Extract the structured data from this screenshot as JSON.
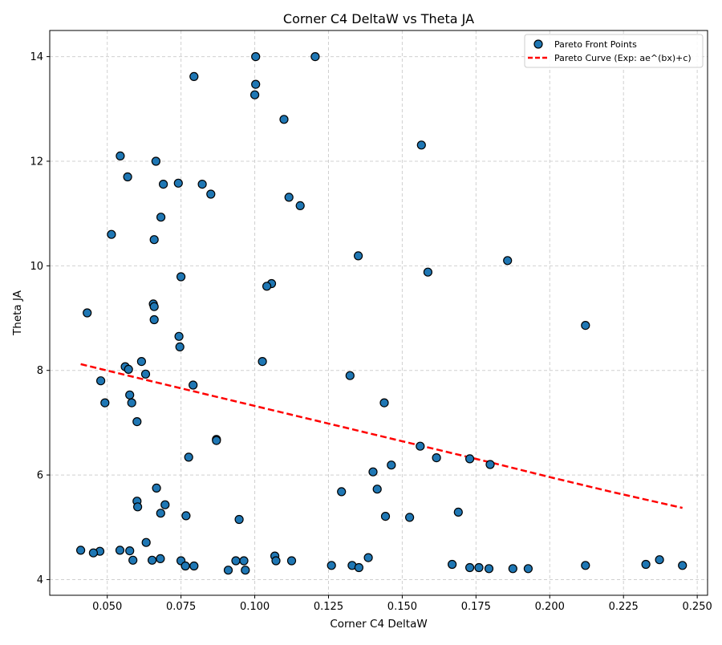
{
  "chart_data": {
    "type": "scatter",
    "title": "Corner C4 DeltaW vs Theta JA",
    "xlabel": "Corner C4 DeltaW",
    "ylabel": "Theta JA",
    "xlim": [
      0.0305,
      0.2535
    ],
    "ylim": [
      3.7,
      14.5
    ],
    "x_ticks": [
      0.05,
      0.075,
      0.1,
      0.125,
      0.15,
      0.175,
      0.2,
      0.225,
      0.25
    ],
    "x_tick_labels": [
      "0.050",
      "0.075",
      "0.100",
      "0.125",
      "0.150",
      "0.175",
      "0.200",
      "0.225",
      "0.250"
    ],
    "y_ticks": [
      4,
      6,
      8,
      10,
      12,
      14
    ],
    "y_tick_labels": [
      "4",
      "6",
      "8",
      "10",
      "12",
      "14"
    ],
    "grid": true,
    "legend_position": "top-right",
    "colors": {
      "points": "#1f77b4",
      "point_edge": "#000000",
      "curve": "#ff0000",
      "grid": "#d0d0d0"
    },
    "series": [
      {
        "name": "Pareto Front Points",
        "kind": "scatter",
        "points": [
          [
            0.1003,
            14.0
          ],
          [
            0.1205,
            14.0
          ],
          [
            0.0794,
            13.62
          ],
          [
            0.1003,
            13.47
          ],
          [
            0.1,
            13.27
          ],
          [
            0.1099,
            12.8
          ],
          [
            0.1565,
            12.31
          ],
          [
            0.0544,
            12.1
          ],
          [
            0.0665,
            12.0
          ],
          [
            0.0569,
            11.7
          ],
          [
            0.069,
            11.56
          ],
          [
            0.0741,
            11.58
          ],
          [
            0.0822,
            11.56
          ],
          [
            0.0851,
            11.37
          ],
          [
            0.1116,
            11.31
          ],
          [
            0.1154,
            11.15
          ],
          [
            0.0682,
            10.93
          ],
          [
            0.0514,
            10.6
          ],
          [
            0.0659,
            10.5
          ],
          [
            0.1351,
            10.19
          ],
          [
            0.1857,
            10.1
          ],
          [
            0.1587,
            9.88
          ],
          [
            0.075,
            9.79
          ],
          [
            0.1057,
            9.66
          ],
          [
            0.1041,
            9.61
          ],
          [
            0.0656,
            9.27
          ],
          [
            0.0659,
            9.22
          ],
          [
            0.0432,
            9.1
          ],
          [
            0.0659,
            8.97
          ],
          [
            0.2121,
            8.86
          ],
          [
            0.0743,
            8.65
          ],
          [
            0.0746,
            8.45
          ],
          [
            0.0616,
            8.17
          ],
          [
            0.1026,
            8.17
          ],
          [
            0.0561,
            8.07
          ],
          [
            0.0572,
            8.02
          ],
          [
            0.063,
            7.93
          ],
          [
            0.1323,
            7.9
          ],
          [
            0.0478,
            7.8
          ],
          [
            0.0791,
            7.72
          ],
          [
            0.0576,
            7.53
          ],
          [
            0.1439,
            7.38
          ],
          [
            0.0492,
            7.38
          ],
          [
            0.0583,
            7.38
          ],
          [
            0.0601,
            7.02
          ],
          [
            0.087,
            6.68
          ],
          [
            0.087,
            6.66
          ],
          [
            0.1561,
            6.55
          ],
          [
            0.0776,
            6.34
          ],
          [
            0.1616,
            6.33
          ],
          [
            0.1729,
            6.31
          ],
          [
            0.1463,
            6.19
          ],
          [
            0.1798,
            6.2
          ],
          [
            0.1401,
            6.06
          ],
          [
            0.0667,
            5.75
          ],
          [
            0.1415,
            5.73
          ],
          [
            0.1294,
            5.68
          ],
          [
            0.0601,
            5.5
          ],
          [
            0.0696,
            5.43
          ],
          [
            0.0603,
            5.39
          ],
          [
            0.0681,
            5.27
          ],
          [
            0.169,
            5.29
          ],
          [
            0.0767,
            5.22
          ],
          [
            0.1443,
            5.21
          ],
          [
            0.1525,
            5.19
          ],
          [
            0.0947,
            5.15
          ],
          [
            0.0632,
            4.71
          ],
          [
            0.041,
            4.56
          ],
          [
            0.0475,
            4.54
          ],
          [
            0.0453,
            4.51
          ],
          [
            0.0543,
            4.56
          ],
          [
            0.0576,
            4.55
          ],
          [
            0.1068,
            4.45
          ],
          [
            0.1385,
            4.42
          ],
          [
            0.2372,
            4.38
          ],
          [
            0.0587,
            4.37
          ],
          [
            0.0652,
            4.37
          ],
          [
            0.068,
            4.4
          ],
          [
            0.075,
            4.36
          ],
          [
            0.0936,
            4.36
          ],
          [
            0.0963,
            4.36
          ],
          [
            0.1072,
            4.36
          ],
          [
            0.1125,
            4.36
          ],
          [
            0.0765,
            4.26
          ],
          [
            0.0794,
            4.26
          ],
          [
            0.126,
            4.27
          ],
          [
            0.133,
            4.27
          ],
          [
            0.1353,
            4.23
          ],
          [
            0.1669,
            4.29
          ],
          [
            0.1729,
            4.23
          ],
          [
            0.176,
            4.23
          ],
          [
            0.1794,
            4.21
          ],
          [
            0.1875,
            4.21
          ],
          [
            0.1927,
            4.21
          ],
          [
            0.2121,
            4.27
          ],
          [
            0.2326,
            4.29
          ],
          [
            0.245,
            4.27
          ],
          [
            0.091,
            4.18
          ],
          [
            0.0968,
            4.18
          ]
        ]
      },
      {
        "name": "Pareto Curve (Exp: ae^(bx)+c)",
        "kind": "line",
        "style": "dashed",
        "x": [
          0.041,
          0.06,
          0.08,
          0.1,
          0.12,
          0.14,
          0.16,
          0.18,
          0.2,
          0.22,
          0.245
        ],
        "y": [
          8.12,
          7.86,
          7.59,
          7.32,
          7.05,
          6.78,
          6.51,
          6.24,
          5.96,
          5.69,
          5.37
        ]
      }
    ]
  }
}
